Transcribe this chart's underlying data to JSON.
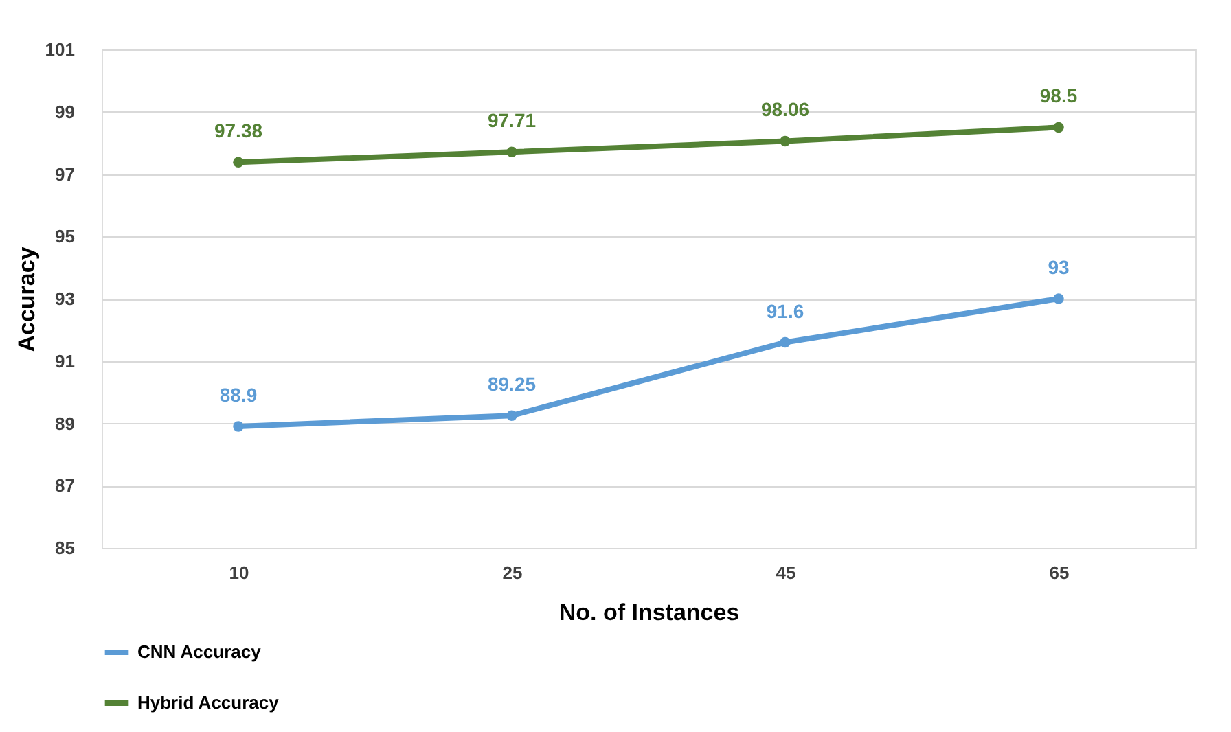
{
  "chart_data": {
    "type": "line",
    "xlabel": "No. of Instances",
    "ylabel": "Accuracy",
    "categories": [
      "10",
      "25",
      "45",
      "65"
    ],
    "series": [
      {
        "name": "CNN Accuracy",
        "color": "#5b9bd5",
        "values": [
          88.9,
          89.25,
          91.6,
          93
        ]
      },
      {
        "name": "Hybrid Accuracy",
        "color": "#548235",
        "values": [
          97.38,
          97.71,
          98.06,
          98.5
        ]
      }
    ],
    "ylim": [
      85,
      101
    ],
    "yticks": [
      85,
      87,
      89,
      91,
      93,
      95,
      97,
      99,
      101
    ],
    "grid": "y",
    "legend": "bottom left",
    "marker": "circle",
    "line_style": "solid",
    "data_labels": true
  }
}
